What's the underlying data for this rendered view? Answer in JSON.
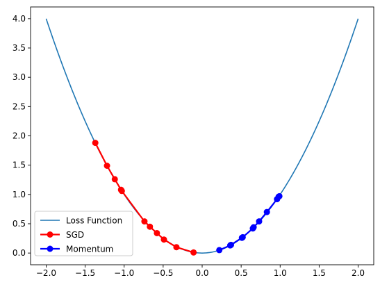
{
  "chart_data": {
    "type": "line",
    "title": "",
    "xlabel": "",
    "ylabel": "",
    "xlim": [
      -2.2,
      2.2
    ],
    "ylim": [
      -0.2,
      4.2
    ],
    "xticks": [
      -2.0,
      -1.5,
      -1.0,
      -0.5,
      0.0,
      0.5,
      1.0,
      1.5,
      2.0
    ],
    "xtick_labels": [
      "−2.0",
      "−1.5",
      "−1.0",
      "−0.5",
      "0.0",
      "0.5",
      "1.0",
      "1.5",
      "2.0"
    ],
    "yticks": [
      0.0,
      0.5,
      1.0,
      1.5,
      2.0,
      2.5,
      3.0,
      3.5,
      4.0
    ],
    "ytick_labels": [
      "0.0",
      "0.5",
      "1.0",
      "1.5",
      "2.0",
      "2.5",
      "3.0",
      "3.5",
      "4.0"
    ],
    "grid": false,
    "legend_position": "lower-left",
    "series": [
      {
        "name": "Loss Function",
        "kind": "curve",
        "function": "y = x^2",
        "x_range": [
          -2.0,
          2.0
        ],
        "color": "#1f77b4",
        "marker": "none"
      },
      {
        "name": "SGD",
        "color": "#ff0000",
        "marker": "circle",
        "x": [
          -1.37,
          -1.22,
          -1.12,
          -1.04,
          -1.03,
          -0.74,
          -0.67,
          -0.58,
          -0.49,
          -0.33,
          -0.11
        ],
        "y": [
          1.88,
          1.49,
          1.26,
          1.08,
          1.06,
          0.54,
          0.45,
          0.34,
          0.23,
          0.1,
          0.01
        ]
      },
      {
        "name": "Momentum",
        "color": "#0000ff",
        "marker": "circle",
        "x": [
          0.22,
          0.36,
          0.37,
          0.51,
          0.52,
          0.65,
          0.66,
          0.73,
          0.83,
          0.96,
          0.98,
          0.99
        ],
        "y": [
          0.05,
          0.13,
          0.14,
          0.26,
          0.27,
          0.42,
          0.44,
          0.54,
          0.7,
          0.92,
          0.96,
          0.97
        ]
      }
    ]
  }
}
